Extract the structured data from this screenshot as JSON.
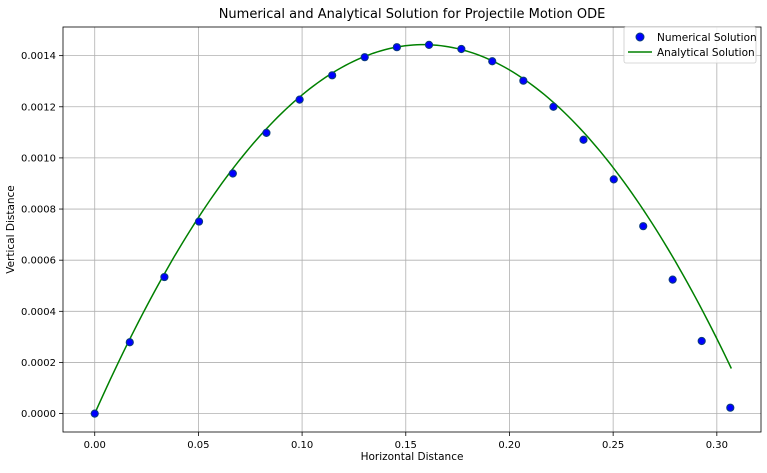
{
  "chart_data": {
    "type": "scatter",
    "title": "Numerical and Analytical Solution for Projectile Motion ODE",
    "xlabel": "Horizontal Distance",
    "ylabel": "Vertical Distance",
    "xlim": [
      -0.0153,
      0.3213
    ],
    "ylim": [
      -7.2e-05,
      0.001512
    ],
    "x_ticks": [
      0.0,
      0.05,
      0.1,
      0.15,
      0.2,
      0.25,
      0.3
    ],
    "x_tick_labels": [
      "0.00",
      "0.05",
      "0.10",
      "0.15",
      "0.20",
      "0.25",
      "0.30"
    ],
    "y_ticks": [
      0.0,
      0.0002,
      0.0004,
      0.0006,
      0.0008,
      0.001,
      0.0012,
      0.0014
    ],
    "y_tick_labels": [
      "0.0000",
      "0.0002",
      "0.0004",
      "0.0006",
      "0.0008",
      "0.0010",
      "0.0012",
      "0.0014"
    ],
    "grid": true,
    "legend_position": "top-right",
    "series": [
      {
        "name": "Numerical Solution",
        "kind": "scatter",
        "color": "#0000ff",
        "edge_color": "#0a3d7a",
        "x": [
          0.0,
          0.0169,
          0.0336,
          0.0503,
          0.0666,
          0.0828,
          0.0988,
          0.1145,
          0.1302,
          0.1457,
          0.1612,
          0.1768,
          0.1917,
          0.2067,
          0.2212,
          0.2357,
          0.2503,
          0.2645,
          0.2787,
          0.2927,
          0.3065
        ],
        "y": [
          0.0,
          0.000279,
          0.000534,
          0.000751,
          0.000939,
          0.001098,
          0.001228,
          0.001323,
          0.001394,
          0.001433,
          0.001442,
          0.001426,
          0.001378,
          0.001302,
          0.0012,
          0.001071,
          0.000916,
          0.000733,
          0.000524,
          0.000284,
          2.3e-05
        ]
      },
      {
        "name": "Analytical Solution",
        "kind": "line",
        "color": "#008000",
        "peak_x": 0.1585,
        "peak_y": 0.001443,
        "x_range": [
          0.0,
          0.307
        ]
      }
    ]
  }
}
